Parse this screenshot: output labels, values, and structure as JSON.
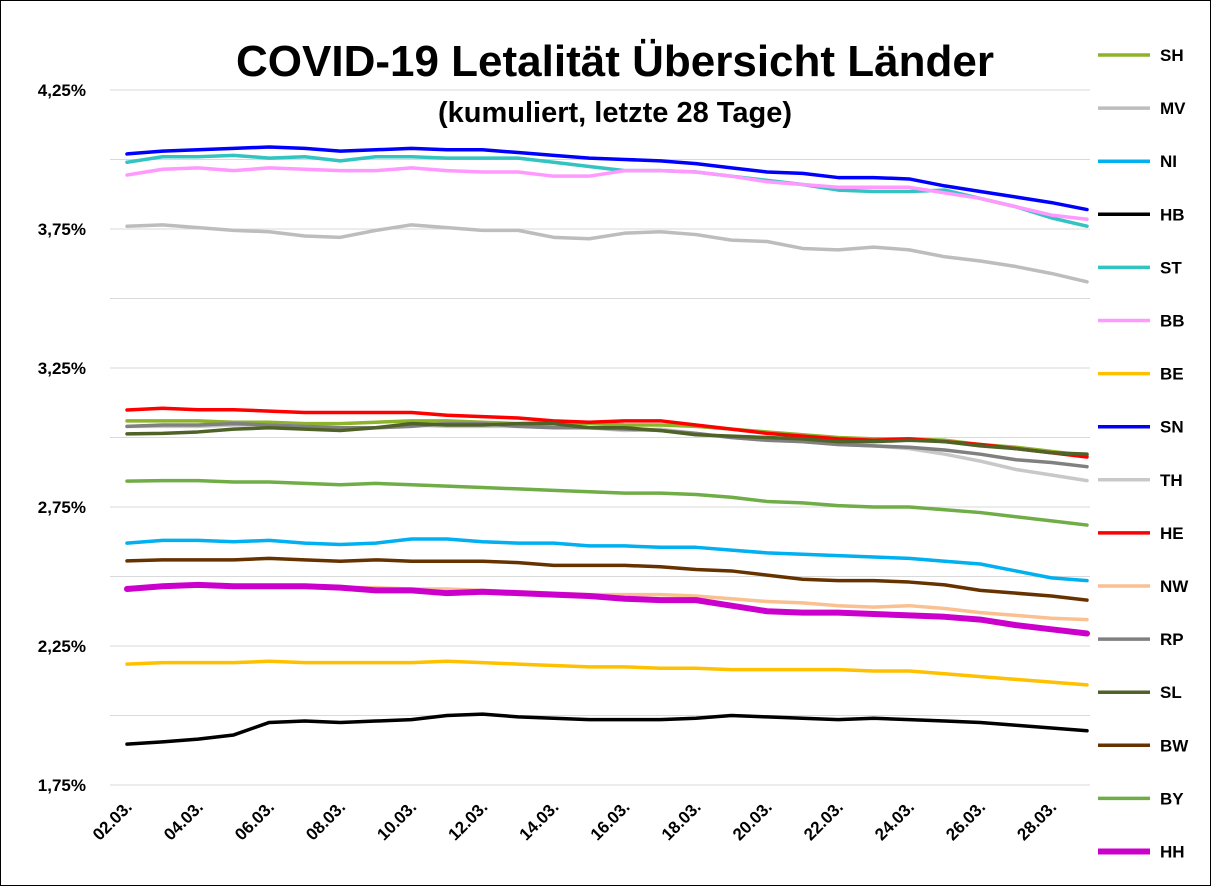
{
  "chart_data": {
    "type": "line",
    "title": "COVID-19 Letalität Übersicht Länder",
    "subtitle": "(kumuliert, letzte 28 Tage)",
    "categories": [
      "02.03.",
      null,
      "04.03.",
      null,
      "06.03.",
      null,
      "08.03.",
      null,
      "10.03.",
      null,
      "12.03.",
      null,
      "14.03.",
      null,
      "16.03.",
      null,
      "18.03.",
      null,
      "20.03.",
      null,
      "22.03.",
      null,
      "24.03.",
      null,
      "26.03.",
      null,
      "28.03.",
      null
    ],
    "ylim": [
      1.75,
      4.5
    ],
    "yticks": [
      {
        "value": 1.75,
        "label": "1,75%"
      },
      {
        "value": 2.25,
        "label": "2,25%"
      },
      {
        "value": 2.75,
        "label": "2,75%"
      },
      {
        "value": 3.25,
        "label": "3,25%"
      },
      {
        "value": 3.75,
        "label": "3,75%"
      },
      {
        "value": 4.25,
        "label": "4,25%"
      }
    ],
    "ygrid": [
      2,
      2.5,
      3,
      3.5,
      4
    ],
    "grid": true,
    "legend": "right",
    "series": [
      {
        "name": "SH",
        "color": "#8db32a",
        "values": [
          3.06,
          3.06,
          3.06,
          3.055,
          3.055,
          3.05,
          3.05,
          3.055,
          3.06,
          3.06,
          3.055,
          3.05,
          3.055,
          3.05,
          3.045,
          3.045,
          3.04,
          3.03,
          3.02,
          3.01,
          3.0,
          2.995,
          2.995,
          2.99,
          2.975,
          2.965,
          2.95,
          2.935
        ]
      },
      {
        "name": "MV",
        "color": "#bdbdbd",
        "values": [
          3.76,
          3.765,
          3.755,
          3.745,
          3.74,
          3.725,
          3.72,
          3.745,
          3.765,
          3.755,
          3.745,
          3.745,
          3.72,
          3.715,
          3.735,
          3.74,
          3.73,
          3.71,
          3.705,
          3.68,
          3.675,
          3.685,
          3.675,
          3.65,
          3.635,
          3.615,
          3.59,
          3.56
        ]
      },
      {
        "name": "NI",
        "color": "#00b0f0",
        "values": [
          2.62,
          2.63,
          2.63,
          2.625,
          2.63,
          2.62,
          2.615,
          2.62,
          2.635,
          2.635,
          2.625,
          2.62,
          2.62,
          2.61,
          2.61,
          2.605,
          2.605,
          2.595,
          2.585,
          2.58,
          2.575,
          2.57,
          2.565,
          2.555,
          2.545,
          2.52,
          2.495,
          2.485
        ]
      },
      {
        "name": "HB",
        "color": "#000000",
        "values": [
          1.897,
          1.905,
          1.915,
          1.93,
          1.975,
          1.98,
          1.975,
          1.98,
          1.985,
          2.0,
          2.005,
          1.995,
          1.99,
          1.985,
          1.985,
          1.985,
          1.99,
          2.0,
          1.995,
          1.99,
          1.985,
          1.99,
          1.985,
          1.98,
          1.975,
          1.965,
          1.955,
          1.945
        ]
      },
      {
        "name": "ST",
        "color": "#33c3c0",
        "values": [
          3.99,
          4.01,
          4.01,
          4.015,
          4.005,
          4.01,
          3.995,
          4.01,
          4.01,
          4.005,
          4.005,
          4.005,
          3.99,
          3.975,
          3.96,
          3.96,
          3.955,
          3.94,
          3.925,
          3.91,
          3.89,
          3.885,
          3.885,
          3.89,
          3.86,
          3.83,
          3.79,
          3.76
        ]
      },
      {
        "name": "BB",
        "color": "#ff99ff",
        "values": [
          3.944,
          3.965,
          3.97,
          3.96,
          3.97,
          3.965,
          3.96,
          3.96,
          3.97,
          3.96,
          3.955,
          3.955,
          3.94,
          3.94,
          3.96,
          3.96,
          3.955,
          3.94,
          3.92,
          3.91,
          3.9,
          3.9,
          3.9,
          3.88,
          3.86,
          3.83,
          3.8,
          3.785
        ]
      },
      {
        "name": "BE",
        "color": "#ffc000",
        "values": [
          2.185,
          2.19,
          2.19,
          2.19,
          2.195,
          2.19,
          2.19,
          2.19,
          2.19,
          2.195,
          2.19,
          2.185,
          2.18,
          2.175,
          2.175,
          2.17,
          2.17,
          2.165,
          2.165,
          2.165,
          2.165,
          2.16,
          2.16,
          2.15,
          2.14,
          2.13,
          2.12,
          2.11
        ]
      },
      {
        "name": "SN",
        "color": "#0000ff",
        "values": [
          4.02,
          4.03,
          4.035,
          4.04,
          4.045,
          4.04,
          4.03,
          4.035,
          4.04,
          4.035,
          4.035,
          4.025,
          4.015,
          4.005,
          4.0,
          3.995,
          3.985,
          3.97,
          3.955,
          3.95,
          3.935,
          3.935,
          3.93,
          3.905,
          3.885,
          3.865,
          3.845,
          3.82
        ]
      },
      {
        "name": "TH",
        "color": "#c8c8c8",
        "values": [
          3.04,
          3.04,
          3.04,
          3.045,
          3.045,
          3.04,
          3.03,
          3.035,
          3.045,
          3.04,
          3.04,
          3.04,
          3.045,
          3.035,
          3.025,
          3.03,
          3.015,
          3.0,
          2.99,
          2.985,
          2.975,
          2.97,
          2.96,
          2.94,
          2.915,
          2.885,
          2.865,
          2.845
        ]
      },
      {
        "name": "HE",
        "color": "#ff0000",
        "values": [
          3.099,
          3.105,
          3.1,
          3.1,
          3.095,
          3.09,
          3.09,
          3.09,
          3.09,
          3.08,
          3.075,
          3.07,
          3.06,
          3.055,
          3.06,
          3.06,
          3.045,
          3.03,
          3.015,
          3.005,
          2.995,
          2.99,
          2.995,
          2.985,
          2.975,
          2.96,
          2.945,
          2.93
        ]
      },
      {
        "name": "NW",
        "color": "#fac090",
        "values": [
          2.46,
          2.465,
          2.47,
          2.465,
          2.465,
          2.465,
          2.46,
          2.46,
          2.455,
          2.455,
          2.45,
          2.445,
          2.44,
          2.435,
          2.435,
          2.435,
          2.43,
          2.42,
          2.41,
          2.405,
          2.395,
          2.39,
          2.395,
          2.385,
          2.37,
          2.36,
          2.35,
          2.345
        ]
      },
      {
        "name": "RP",
        "color": "#808080",
        "values": [
          3.04,
          3.045,
          3.045,
          3.05,
          3.045,
          3.04,
          3.035,
          3.035,
          3.04,
          3.05,
          3.05,
          3.04,
          3.035,
          3.035,
          3.03,
          3.025,
          3.015,
          3.0,
          2.99,
          2.985,
          2.975,
          2.97,
          2.965,
          2.955,
          2.94,
          2.92,
          2.91,
          2.895
        ]
      },
      {
        "name": "SL",
        "color": "#4f6228",
        "values": [
          3.013,
          3.015,
          3.02,
          3.03,
          3.035,
          3.03,
          3.025,
          3.035,
          3.05,
          3.045,
          3.045,
          3.05,
          3.05,
          3.035,
          3.035,
          3.025,
          3.01,
          3.005,
          3.0,
          2.995,
          2.985,
          2.985,
          2.99,
          2.985,
          2.97,
          2.96,
          2.945,
          2.94
        ]
      },
      {
        "name": "BW",
        "color": "#663300",
        "values": [
          2.556,
          2.56,
          2.56,
          2.56,
          2.565,
          2.56,
          2.555,
          2.56,
          2.555,
          2.555,
          2.555,
          2.55,
          2.54,
          2.54,
          2.54,
          2.535,
          2.525,
          2.52,
          2.505,
          2.49,
          2.485,
          2.485,
          2.48,
          2.47,
          2.45,
          2.44,
          2.43,
          2.415
        ]
      },
      {
        "name": "BY",
        "color": "#70ad47",
        "values": [
          2.843,
          2.845,
          2.845,
          2.84,
          2.84,
          2.835,
          2.83,
          2.835,
          2.83,
          2.825,
          2.82,
          2.815,
          2.81,
          2.805,
          2.8,
          2.8,
          2.795,
          2.785,
          2.77,
          2.765,
          2.755,
          2.75,
          2.75,
          2.74,
          2.73,
          2.715,
          2.7,
          2.685
        ]
      },
      {
        "name": "HH",
        "color": "#cc00cc",
        "line_width": 6,
        "values": [
          2.455,
          2.465,
          2.47,
          2.465,
          2.465,
          2.465,
          2.46,
          2.45,
          2.45,
          2.44,
          2.445,
          2.44,
          2.435,
          2.43,
          2.42,
          2.415,
          2.415,
          2.395,
          2.375,
          2.37,
          2.37,
          2.365,
          2.36,
          2.355,
          2.345,
          2.325,
          2.31,
          2.295
        ]
      }
    ]
  }
}
